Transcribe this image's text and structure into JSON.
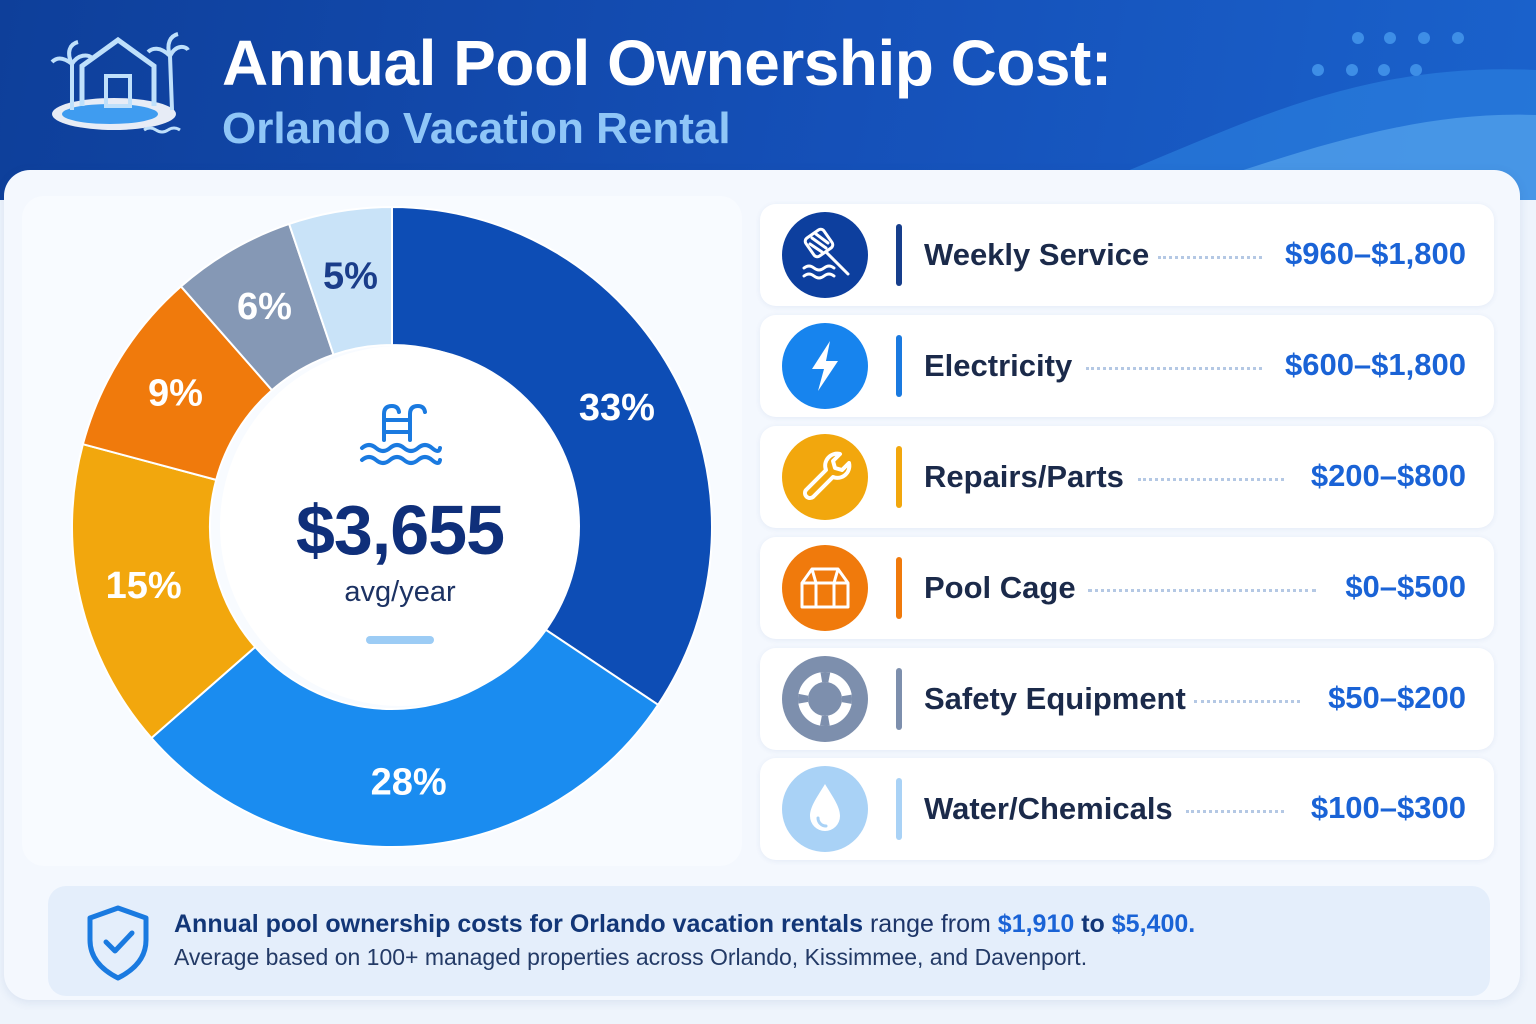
{
  "header": {
    "title": "Annual Pool Ownership Cost:",
    "subtitle": "Orlando Vacation Rental"
  },
  "center": {
    "amount": "$3,655",
    "caption": "avg/year"
  },
  "chart_data": {
    "type": "pie",
    "title": "Annual Pool Ownership Cost: Orlando Vacation Rental",
    "total_label": "$3,655 avg/year",
    "categories": [
      "Weekly Service",
      "Electricity",
      "Repairs/Parts",
      "Pool Cage",
      "Safety Equipment",
      "Water/Chemicals"
    ],
    "values": [
      33,
      28,
      15,
      9,
      6,
      5
    ],
    "labels": [
      "33%",
      "28%",
      "15%",
      "9%",
      "6%",
      "5%"
    ],
    "colors": [
      "#0d4db5",
      "#1a8cf0",
      "#f2a70d",
      "#f07a0c",
      "#8598b5",
      "#c9e3f8"
    ],
    "label_colors": [
      "#ffffff",
      "#ffffff",
      "#ffffff",
      "#ffffff",
      "#ffffff",
      "#1a3d8a"
    ],
    "legend_position": "right",
    "grid": false
  },
  "costs": [
    {
      "label": "Weekly Service",
      "value": "$960–$1,800",
      "icon": "pool-skimmer-net-icon",
      "color": "#0d3f9e",
      "accent": "#163e8c"
    },
    {
      "label": "Electricity",
      "value": "$600–$1,800",
      "icon": "lightning-bolt-icon",
      "color": "#1784ee",
      "accent": "#1a7ae0"
    },
    {
      "label": "Repairs/Parts",
      "value": "$200–$800",
      "icon": "wrench-icon",
      "color": "#f2a70d",
      "accent": "#f2a70d"
    },
    {
      "label": "Pool Cage",
      "value": "$0–$500",
      "icon": "pool-cage-icon",
      "color": "#f07a0c",
      "accent": "#f07a0c"
    },
    {
      "label": "Safety Equipment",
      "value": "$50–$200",
      "icon": "life-ring-icon",
      "color": "#7d8fad",
      "accent": "#7d8fad"
    },
    {
      "label": "Water/Chemicals",
      "value": "$100–$300",
      "icon": "water-drop-icon",
      "color": "#a9d2f6",
      "accent": "#a9d2f6"
    }
  ],
  "footer": {
    "line1_prefix": "Annual pool ownership costs for Orlando vacation rentals",
    "line1_middle": "range from",
    "low": "$1,910",
    "to": "to",
    "high": "$5,400.",
    "line2": "Average based on 100+ managed properties across Orlando, Kissimmee, and Davenport."
  }
}
